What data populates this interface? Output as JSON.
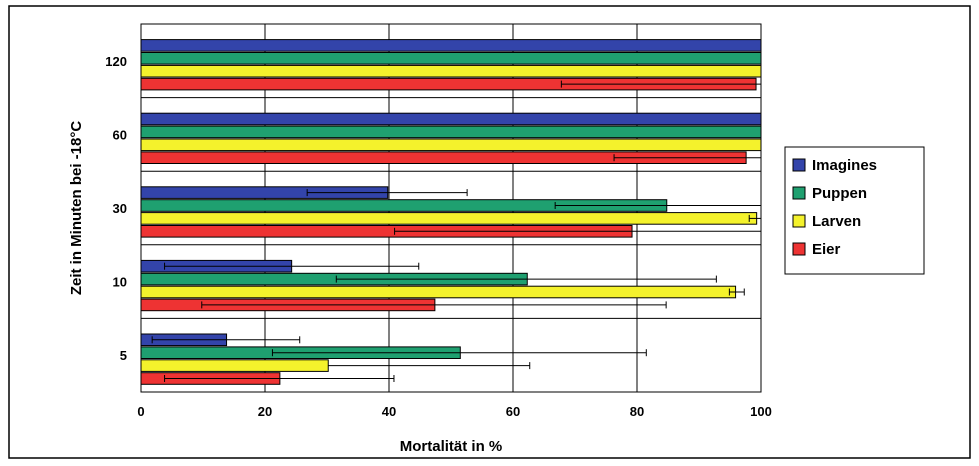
{
  "chart_data": {
    "type": "bar",
    "orientation": "horizontal",
    "xlabel": "Mortalität in %",
    "ylabel": "Zeit in Minuten bei -18°C",
    "xlim": [
      0,
      100
    ],
    "xticks": [
      "0",
      "20",
      "40",
      "60",
      "80",
      "100"
    ],
    "categories": [
      "5",
      "10",
      "30",
      "60",
      "120"
    ],
    "grid": true,
    "legend_position": "right",
    "series": [
      {
        "name": "Imagines",
        "color": "#3344aa",
        "values": [
          13.8,
          24.3,
          39.8,
          100,
          100
        ],
        "err_low": [
          12,
          20.5,
          13,
          null,
          null
        ],
        "err_high": [
          11.8,
          20.5,
          12.8,
          null,
          null
        ]
      },
      {
        "name": "Puppen",
        "color": "#1fa070",
        "values": [
          51.5,
          62.3,
          84.8,
          100,
          100
        ],
        "err_low": [
          30.3,
          30.8,
          18,
          null,
          null
        ],
        "err_high": [
          30,
          30.5,
          16,
          null,
          null
        ]
      },
      {
        "name": "Larven",
        "color": "#f4f22c",
        "values": [
          30.2,
          95.9,
          99.3,
          100,
          100
        ],
        "err_low": [
          null,
          1,
          1.2,
          null,
          null
        ],
        "err_high": [
          32.5,
          1.4,
          1.5,
          null,
          null
        ]
      },
      {
        "name": "Eier",
        "color": "#ee3333",
        "values": [
          22.4,
          47.4,
          79.2,
          97.6,
          99.2
        ],
        "err_low": [
          18.6,
          37.6,
          38.3,
          21.3,
          31.4
        ],
        "err_high": [
          18.4,
          37.3,
          21,
          2.8,
          0.8
        ]
      }
    ]
  }
}
